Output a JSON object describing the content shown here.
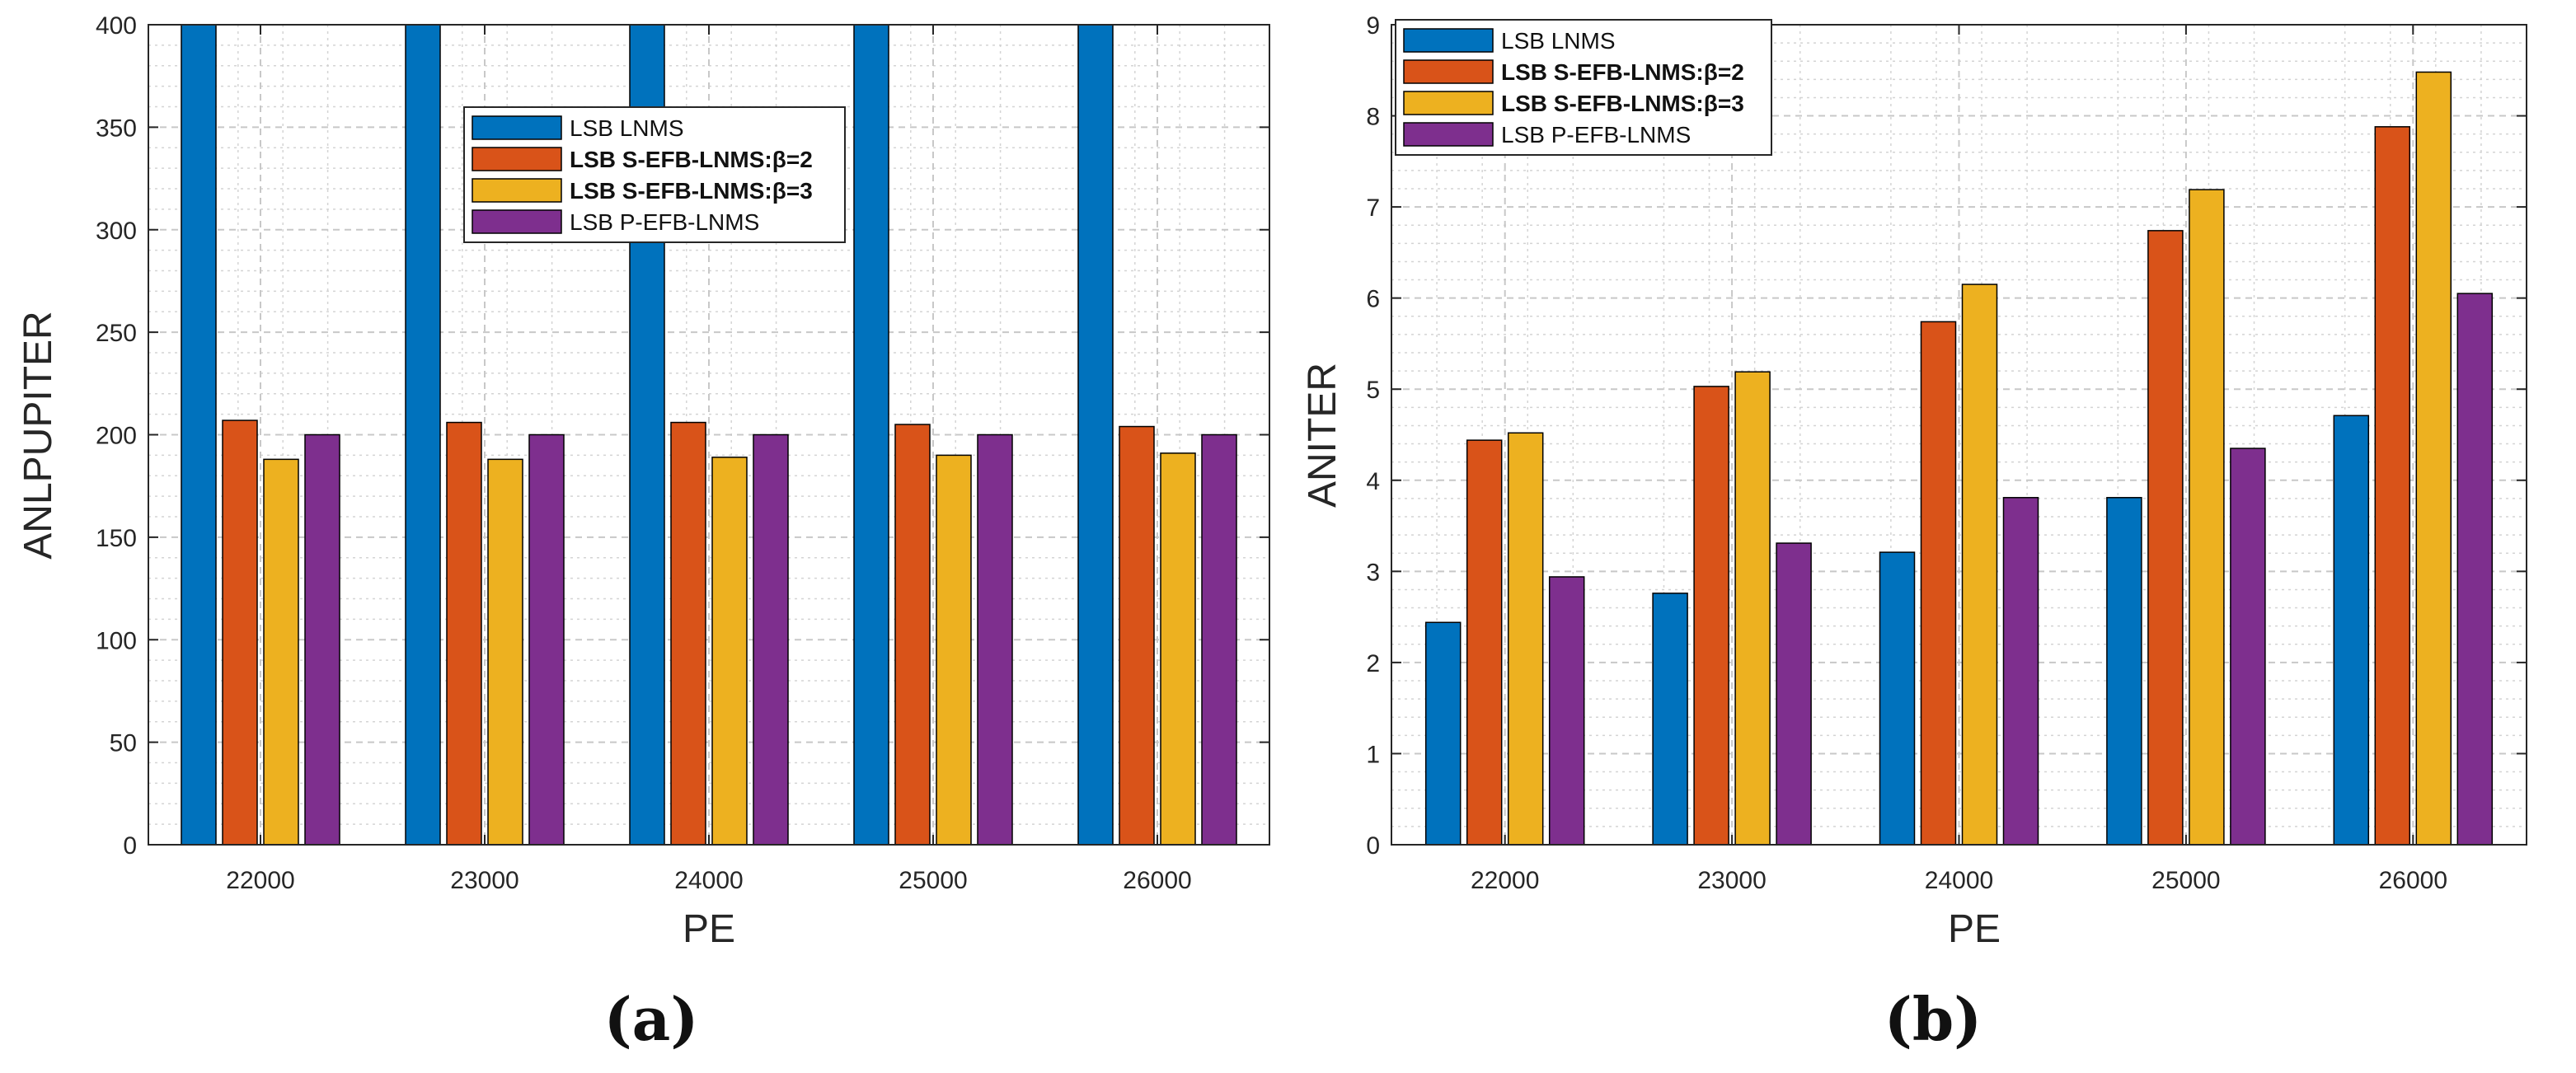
{
  "chart_data": [
    {
      "type": "bar",
      "panel_label": "(a)",
      "title": "",
      "xlabel": "PE",
      "ylabel": "ANLPUPITER",
      "categories": [
        "22000",
        "23000",
        "24000",
        "25000",
        "26000"
      ],
      "ylim": [
        0,
        400
      ],
      "yticks": [
        0,
        50,
        100,
        150,
        200,
        250,
        300,
        350,
        400
      ],
      "grid": true,
      "legend_position": "upper-middle",
      "series": [
        {
          "name": "LSB LNMS",
          "color": "#0072BD",
          "bold": false,
          "values": [
            400,
            400,
            400,
            400,
            400
          ]
        },
        {
          "name": "LSB S-EFB-LNMS:β=2",
          "color": "#D95319",
          "bold": true,
          "values": [
            207,
            206,
            206,
            205,
            204
          ]
        },
        {
          "name": "LSB S-EFB-LNMS:β=3",
          "color": "#EDB120",
          "bold": true,
          "values": [
            188,
            188,
            189,
            190,
            191
          ]
        },
        {
          "name": "LSB P-EFB-LNMS",
          "color": "#7E2F8E",
          "bold": false,
          "values": [
            200,
            200,
            200,
            200,
            200
          ]
        }
      ]
    },
    {
      "type": "bar",
      "panel_label": "(b)",
      "title": "",
      "xlabel": "PE",
      "ylabel": "ANITER",
      "categories": [
        "22000",
        "23000",
        "24000",
        "25000",
        "26000"
      ],
      "ylim": [
        0,
        9
      ],
      "yticks": [
        0,
        1,
        2,
        3,
        4,
        5,
        6,
        7,
        8,
        9
      ],
      "grid": true,
      "legend_position": "top-left",
      "series": [
        {
          "name": "LSB LNMS",
          "color": "#0072BD",
          "bold": false,
          "values": [
            2.44,
            2.76,
            3.21,
            3.81,
            4.71
          ]
        },
        {
          "name": "LSB S-EFB-LNMS:β=2",
          "color": "#D95319",
          "bold": true,
          "values": [
            4.44,
            5.03,
            5.74,
            6.74,
            7.88
          ]
        },
        {
          "name": "LSB S-EFB-LNMS:β=3",
          "color": "#EDB120",
          "bold": true,
          "values": [
            4.52,
            5.19,
            6.15,
            7.19,
            8.48
          ]
        },
        {
          "name": "LSB P-EFB-LNMS",
          "color": "#7E2F8E",
          "bold": false,
          "values": [
            2.94,
            3.31,
            3.81,
            4.35,
            6.05
          ]
        }
      ]
    }
  ]
}
